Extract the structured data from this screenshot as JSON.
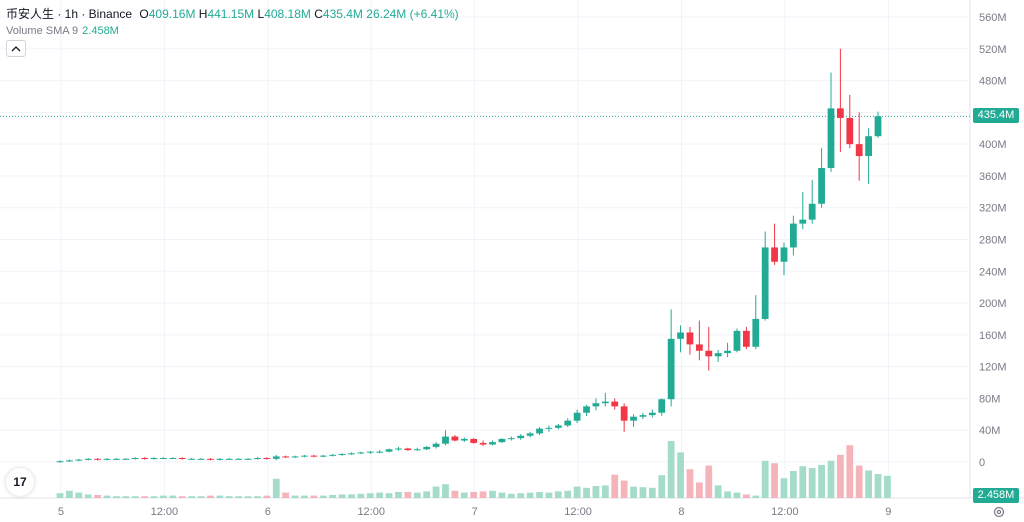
{
  "legend": {
    "symbol": "币安人生 · 1h · Binance",
    "open_key": "O",
    "open": "409.16M",
    "high_key": "H",
    "high": "441.15M",
    "low_key": "L",
    "low": "408.18M",
    "close_key": "C",
    "close": "435.4M",
    "change": "26.24M (+6.41%)"
  },
  "volume_legend": {
    "label": "Volume SMA 9",
    "value": "2.458M"
  },
  "last_price_label": "435.4M",
  "volume_label": "2.458M",
  "logo_text": "17",
  "watermark": "9",
  "colors": {
    "up": "#22ab94",
    "down": "#f23645",
    "up_volume": "#a5dcc9",
    "down_volume": "#f5b3ba",
    "grid": "#f0f3fa",
    "axis_text": "#787b86"
  },
  "chart_data": {
    "type": "candlestick",
    "title": "币安人生 · 1h · Binance",
    "price_unit": "M",
    "ylim": [
      -45,
      580
    ],
    "y_ticks": [
      "560M",
      "520M",
      "480M",
      "440M",
      "400M",
      "360M",
      "320M",
      "280M",
      "240M",
      "200M",
      "160M",
      "120M",
      "80M",
      "40M",
      "0"
    ],
    "y_tick_values": [
      560,
      520,
      480,
      440,
      400,
      360,
      320,
      280,
      240,
      200,
      160,
      120,
      80,
      40,
      0
    ],
    "x_ticks": [
      "5",
      "12:00",
      "6",
      "12:00",
      "7",
      "12:00",
      "8",
      "12:00",
      "9"
    ],
    "grid": true,
    "candles": [
      {
        "o": 0,
        "h": 2,
        "l": -1,
        "c": 1
      },
      {
        "o": 1,
        "h": 3,
        "l": 0,
        "c": 2
      },
      {
        "o": 2,
        "h": 4,
        "l": 1,
        "c": 3
      },
      {
        "o": 3,
        "h": 5,
        "l": 2,
        "c": 4
      },
      {
        "o": 4,
        "h": 5,
        "l": 2,
        "c": 3
      },
      {
        "o": 3,
        "h": 5,
        "l": 2,
        "c": 4
      },
      {
        "o": 4,
        "h": 5,
        "l": 3,
        "c": 4
      },
      {
        "o": 4,
        "h": 5,
        "l": 3,
        "c": 4
      },
      {
        "o": 4,
        "h": 6,
        "l": 3,
        "c": 5
      },
      {
        "o": 5,
        "h": 6,
        "l": 3,
        "c": 4
      },
      {
        "o": 4,
        "h": 6,
        "l": 3,
        "c": 5
      },
      {
        "o": 5,
        "h": 6,
        "l": 4,
        "c": 5
      },
      {
        "o": 5,
        "h": 6,
        "l": 4,
        "c": 5
      },
      {
        "o": 5,
        "h": 6,
        "l": 3,
        "c": 4
      },
      {
        "o": 4,
        "h": 5,
        "l": 3,
        "c": 4
      },
      {
        "o": 4,
        "h": 5,
        "l": 3,
        "c": 4
      },
      {
        "o": 4,
        "h": 5,
        "l": 2,
        "c": 3
      },
      {
        "o": 3,
        "h": 5,
        "l": 2,
        "c": 4
      },
      {
        "o": 4,
        "h": 5,
        "l": 3,
        "c": 4
      },
      {
        "o": 4,
        "h": 5,
        "l": 3,
        "c": 4
      },
      {
        "o": 4,
        "h": 5,
        "l": 3,
        "c": 4
      },
      {
        "o": 4,
        "h": 6,
        "l": 3,
        "c": 5
      },
      {
        "o": 5,
        "h": 6,
        "l": 3,
        "c": 4
      },
      {
        "o": 4,
        "h": 9,
        "l": 2,
        "c": 7
      },
      {
        "o": 7,
        "h": 8,
        "l": 5,
        "c": 6
      },
      {
        "o": 6,
        "h": 8,
        "l": 5,
        "c": 7
      },
      {
        "o": 7,
        "h": 9,
        "l": 6,
        "c": 8
      },
      {
        "o": 8,
        "h": 9,
        "l": 6,
        "c": 7
      },
      {
        "o": 7,
        "h": 9,
        "l": 6,
        "c": 8
      },
      {
        "o": 8,
        "h": 10,
        "l": 7,
        "c": 9
      },
      {
        "o": 9,
        "h": 11,
        "l": 8,
        "c": 10
      },
      {
        "o": 10,
        "h": 12,
        "l": 9,
        "c": 11
      },
      {
        "o": 11,
        "h": 13,
        "l": 10,
        "c": 12
      },
      {
        "o": 12,
        "h": 14,
        "l": 10,
        "c": 13
      },
      {
        "o": 13,
        "h": 15,
        "l": 11,
        "c": 13
      },
      {
        "o": 13,
        "h": 17,
        "l": 12,
        "c": 16
      },
      {
        "o": 16,
        "h": 19,
        "l": 14,
        "c": 17
      },
      {
        "o": 17,
        "h": 18,
        "l": 14,
        "c": 15
      },
      {
        "o": 15,
        "h": 18,
        "l": 14,
        "c": 16
      },
      {
        "o": 16,
        "h": 20,
        "l": 15,
        "c": 19
      },
      {
        "o": 19,
        "h": 25,
        "l": 17,
        "c": 23
      },
      {
        "o": 23,
        "h": 40,
        "l": 21,
        "c": 32
      },
      {
        "o": 32,
        "h": 34,
        "l": 26,
        "c": 27
      },
      {
        "o": 27,
        "h": 31,
        "l": 25,
        "c": 29
      },
      {
        "o": 29,
        "h": 30,
        "l": 23,
        "c": 24
      },
      {
        "o": 24,
        "h": 27,
        "l": 20,
        "c": 22
      },
      {
        "o": 22,
        "h": 27,
        "l": 21,
        "c": 25
      },
      {
        "o": 25,
        "h": 30,
        "l": 24,
        "c": 29
      },
      {
        "o": 29,
        "h": 32,
        "l": 27,
        "c": 30
      },
      {
        "o": 30,
        "h": 35,
        "l": 28,
        "c": 33
      },
      {
        "o": 33,
        "h": 38,
        "l": 31,
        "c": 36
      },
      {
        "o": 36,
        "h": 44,
        "l": 34,
        "c": 42
      },
      {
        "o": 42,
        "h": 46,
        "l": 38,
        "c": 43
      },
      {
        "o": 43,
        "h": 48,
        "l": 41,
        "c": 46
      },
      {
        "o": 46,
        "h": 55,
        "l": 44,
        "c": 52
      },
      {
        "o": 52,
        "h": 66,
        "l": 49,
        "c": 62
      },
      {
        "o": 62,
        "h": 72,
        "l": 58,
        "c": 70
      },
      {
        "o": 70,
        "h": 80,
        "l": 65,
        "c": 74
      },
      {
        "o": 74,
        "h": 87,
        "l": 70,
        "c": 76
      },
      {
        "o": 76,
        "h": 80,
        "l": 66,
        "c": 70
      },
      {
        "o": 70,
        "h": 74,
        "l": 38,
        "c": 52
      },
      {
        "o": 52,
        "h": 60,
        "l": 44,
        "c": 57
      },
      {
        "o": 57,
        "h": 62,
        "l": 54,
        "c": 59
      },
      {
        "o": 59,
        "h": 66,
        "l": 56,
        "c": 62
      },
      {
        "o": 62,
        "h": 80,
        "l": 58,
        "c": 79
      },
      {
        "o": 79,
        "h": 192,
        "l": 70,
        "c": 155
      },
      {
        "o": 155,
        "h": 172,
        "l": 138,
        "c": 163
      },
      {
        "o": 163,
        "h": 170,
        "l": 135,
        "c": 148
      },
      {
        "o": 148,
        "h": 178,
        "l": 128,
        "c": 140
      },
      {
        "o": 140,
        "h": 170,
        "l": 115,
        "c": 133
      },
      {
        "o": 133,
        "h": 141,
        "l": 126,
        "c": 137
      },
      {
        "o": 137,
        "h": 150,
        "l": 132,
        "c": 140
      },
      {
        "o": 140,
        "h": 168,
        "l": 138,
        "c": 165
      },
      {
        "o": 165,
        "h": 170,
        "l": 142,
        "c": 145
      },
      {
        "o": 145,
        "h": 210,
        "l": 142,
        "c": 180
      },
      {
        "o": 180,
        "h": 290,
        "l": 178,
        "c": 270
      },
      {
        "o": 270,
        "h": 300,
        "l": 248,
        "c": 252
      },
      {
        "o": 252,
        "h": 276,
        "l": 235,
        "c": 270
      },
      {
        "o": 270,
        "h": 310,
        "l": 260,
        "c": 300
      },
      {
        "o": 300,
        "h": 340,
        "l": 293,
        "c": 305
      },
      {
        "o": 305,
        "h": 355,
        "l": 300,
        "c": 325
      },
      {
        "o": 325,
        "h": 395,
        "l": 320,
        "c": 370
      },
      {
        "o": 370,
        "h": 490,
        "l": 365,
        "c": 445
      },
      {
        "o": 445,
        "h": 520,
        "l": 390,
        "c": 433
      },
      {
        "o": 433,
        "h": 462,
        "l": 395,
        "c": 400
      },
      {
        "o": 400,
        "h": 440,
        "l": 354,
        "c": 385
      },
      {
        "o": 385,
        "h": 420,
        "l": 350,
        "c": 410
      },
      {
        "o": 410,
        "h": 441,
        "l": 408,
        "c": 435
      }
    ],
    "volume_unit": "M",
    "volume_max": 10,
    "volumes": [
      0.8,
      1.2,
      0.9,
      0.6,
      0.5,
      0.4,
      0.3,
      0.3,
      0.3,
      0.3,
      0.3,
      0.4,
      0.4,
      0.3,
      0.3,
      0.3,
      0.4,
      0.4,
      0.3,
      0.3,
      0.3,
      0.3,
      0.4,
      3.2,
      0.9,
      0.4,
      0.4,
      0.4,
      0.4,
      0.5,
      0.6,
      0.6,
      0.7,
      0.8,
      0.9,
      0.8,
      1.0,
      1.0,
      0.9,
      1.1,
      1.9,
      2.3,
      1.2,
      0.9,
      1.0,
      1.1,
      1.2,
      0.9,
      0.7,
      0.8,
      0.9,
      1.0,
      0.9,
      1.1,
      1.2,
      1.9,
      1.7,
      2.0,
      2.1,
      3.9,
      2.9,
      1.9,
      1.8,
      1.7,
      3.8,
      9.5,
      7.6,
      4.8,
      2.6,
      5.4,
      2.1,
      1.1,
      0.9,
      0.6,
      0.4,
      6.2,
      5.8,
      3.3,
      4.5,
      5.3,
      5.0,
      5.5,
      6.2,
      7.2,
      8.8,
      5.4,
      4.6,
      4.0,
      3.7
    ],
    "volume_direction": "matches candle direction"
  }
}
